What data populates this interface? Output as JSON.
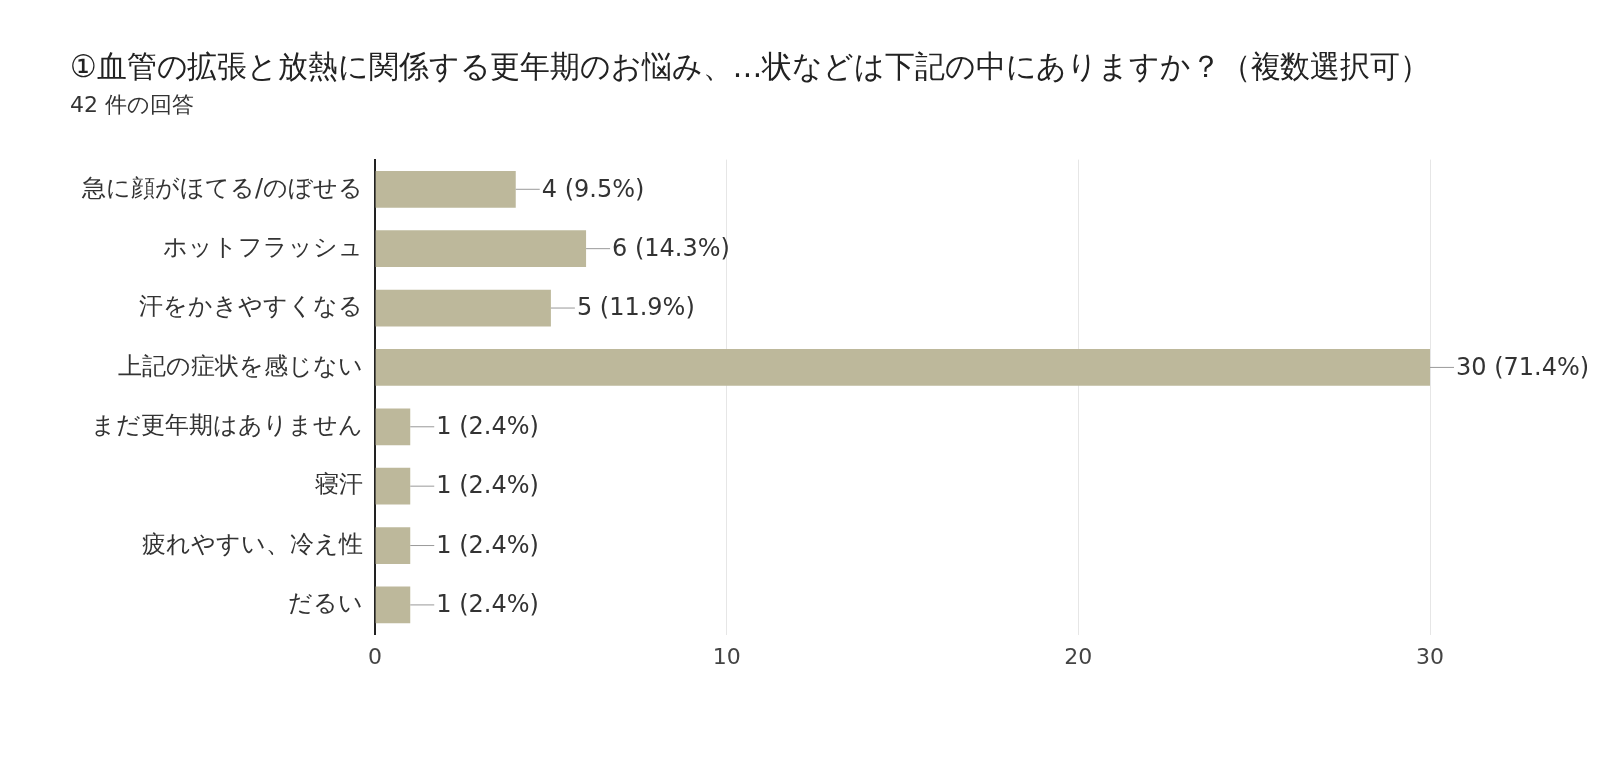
{
  "chart_data": {
    "type": "bar",
    "orientation": "horizontal",
    "title": "①血管の拡張と放熱に関係する更年期のお悩み、…状などは下記の中にありますか？（複数選択可）",
    "subtitle": "42 件の回答",
    "categories": [
      "急に顔がほてる/のぼせる",
      "ホットフラッシュ",
      "汗をかきやすくなる",
      "上記の症状を感じない",
      "まだ更年期はありません",
      "寝汗",
      "疲れやすい、冷え性",
      "だるい"
    ],
    "values": [
      4,
      6,
      5,
      30,
      1,
      1,
      1,
      1
    ],
    "value_labels": [
      "4 (9.5%)",
      "6 (14.3%)",
      "5 (11.9%)",
      "30 (71.4%)",
      "1 (2.4%)",
      "1 (2.4%)",
      "1 (2.4%)",
      "1 (2.4%)"
    ],
    "color": "#bdb89b",
    "xlim": [
      0,
      30
    ],
    "xticks": [
      0,
      10,
      20,
      30
    ],
    "grid": true,
    "data_labels": true
  }
}
